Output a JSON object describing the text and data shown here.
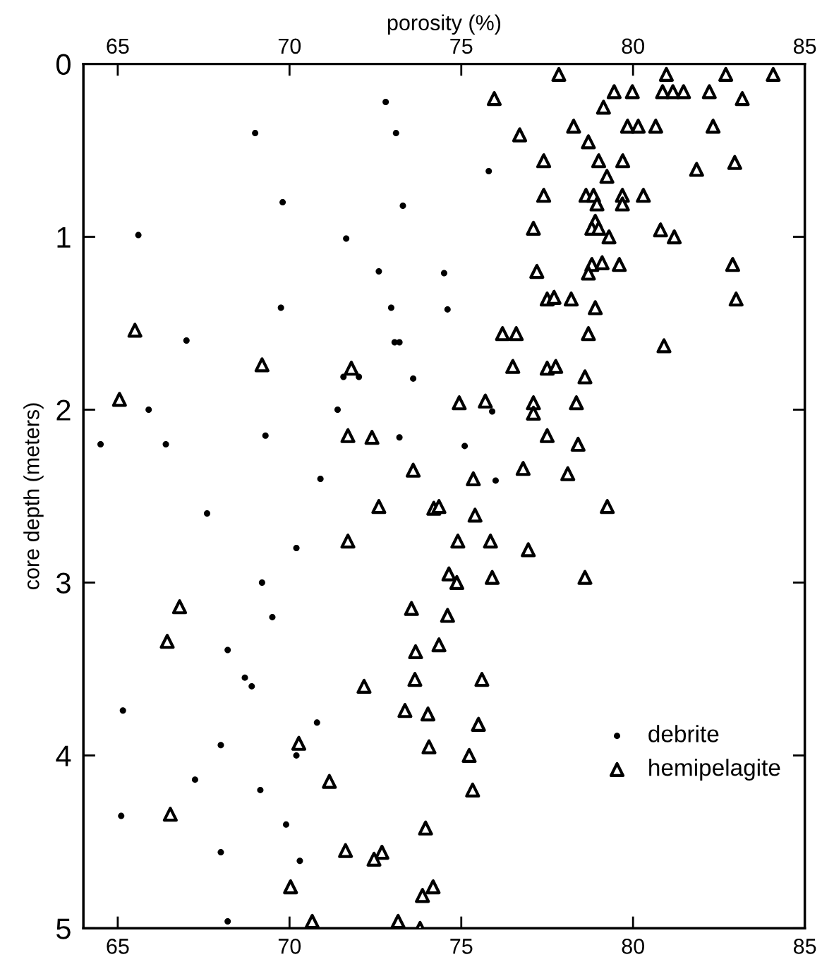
{
  "chart_data": {
    "type": "scatter",
    "x2label": "porosity (%)",
    "ylabel": "core depth (meters)",
    "xlim": [
      64,
      85
    ],
    "xticks": [
      65,
      70,
      75,
      80,
      85
    ],
    "x2lim": [
      64,
      85
    ],
    "x2ticks": [
      65,
      70,
      75,
      80,
      85
    ],
    "ylim": [
      5,
      0
    ],
    "yticks": [
      0,
      1,
      2,
      3,
      4,
      5
    ],
    "grid": false,
    "legend": "bottom right",
    "series": [
      {
        "name": "debrite",
        "color": "#000000",
        "marker": "circle",
        "x": [
          72.8,
          69.0,
          73.1,
          69.8,
          73.3,
          65.6,
          71.65,
          72.6,
          69.75,
          72.96,
          67.0,
          73.06,
          73.2,
          75.8,
          74.5,
          74.6,
          71.57,
          72.02,
          73.6,
          65.9,
          71.4,
          64.5,
          66.4,
          69.3,
          73.2,
          70.9,
          67.6,
          70.2,
          69.2,
          69.5,
          75.9,
          75.1,
          76.0,
          68.2,
          68.7,
          68.9,
          65.15,
          70.8,
          68.0,
          70.2,
          67.25,
          69.15,
          65.1,
          69.9,
          68.0,
          70.3,
          68.2
        ],
        "values": [
          0.22,
          0.4,
          0.4,
          0.8,
          0.82,
          0.99,
          1.01,
          1.2,
          1.41,
          1.41,
          1.6,
          1.61,
          1.61,
          0.62,
          1.21,
          1.42,
          1.81,
          1.81,
          1.82,
          2.0,
          2.0,
          2.2,
          2.2,
          2.15,
          2.16,
          2.4,
          2.6,
          2.8,
          3.0,
          3.2,
          2.01,
          2.21,
          2.41,
          3.39,
          3.55,
          3.6,
          3.74,
          3.81,
          3.94,
          4.0,
          4.14,
          4.2,
          4.35,
          4.4,
          4.56,
          4.61,
          4.96
        ]
      },
      {
        "name": "hemipelagite",
        "color": "#000000",
        "marker": "triangle",
        "x": [
          77.84,
          80.97,
          82.7,
          84.08,
          79.45,
          79.98,
          80.86,
          81.16,
          81.47,
          82.22,
          83.18,
          75.96,
          79.14,
          78.27,
          79.84,
          80.15,
          80.66,
          82.33,
          76.7,
          78.7,
          77.4,
          79.0,
          79.7,
          81.85,
          82.96,
          79.24,
          77.4,
          78.63,
          78.85,
          78.95,
          79.69,
          79.69,
          80.3,
          78.9,
          78.8,
          79.0,
          79.3,
          77.1,
          80.8,
          81.2,
          78.8,
          79.1,
          79.6,
          78.7,
          77.2,
          82.9,
          77.5,
          77.7,
          78.2,
          78.9,
          83.0,
          76.2,
          76.6,
          78.7,
          80.9,
          65.5,
          69.2,
          71.8,
          65.05,
          71.7,
          72.4,
          73.6,
          72.6,
          74.2,
          71.7,
          66.8,
          73.55,
          76.5,
          77.5,
          77.75,
          78.6,
          74.94,
          75.7,
          77.1,
          77.1,
          78.35,
          77.5,
          78.4,
          75.35,
          76.8,
          78.1,
          74.35,
          75.4,
          79.25,
          74.9,
          75.85,
          76.95,
          74.64,
          74.87,
          75.9,
          78.6,
          74.6,
          66.44,
          73.67,
          74.35,
          73.65,
          72.17,
          73.36,
          74.03,
          70.27,
          74.06,
          71.16,
          66.53,
          73.96,
          71.63,
          72.69,
          72.46,
          70.03,
          74.18,
          73.87,
          70.66,
          73.16,
          73.8,
          75.6,
          75.5,
          75.23,
          75.33
        ],
        "values": [
          0.06,
          0.06,
          0.06,
          0.06,
          0.16,
          0.16,
          0.16,
          0.16,
          0.16,
          0.16,
          0.2,
          0.2,
          0.25,
          0.36,
          0.36,
          0.36,
          0.36,
          0.36,
          0.41,
          0.45,
          0.56,
          0.56,
          0.56,
          0.61,
          0.57,
          0.65,
          0.76,
          0.76,
          0.76,
          0.81,
          0.76,
          0.81,
          0.76,
          0.91,
          0.95,
          0.95,
          1.0,
          0.95,
          0.96,
          1.0,
          1.16,
          1.15,
          1.16,
          1.21,
          1.2,
          1.16,
          1.36,
          1.35,
          1.36,
          1.41,
          1.36,
          1.56,
          1.56,
          1.56,
          1.63,
          1.54,
          1.74,
          1.76,
          1.94,
          2.15,
          2.16,
          2.35,
          2.56,
          2.57,
          2.76,
          3.14,
          3.15,
          1.75,
          1.76,
          1.75,
          1.81,
          1.96,
          1.95,
          1.96,
          2.02,
          1.96,
          2.15,
          2.2,
          2.4,
          2.34,
          2.37,
          2.56,
          2.61,
          2.56,
          2.76,
          2.76,
          2.81,
          2.95,
          3.0,
          2.97,
          2.97,
          3.19,
          3.34,
          3.4,
          3.36,
          3.56,
          3.6,
          3.74,
          3.76,
          3.93,
          3.95,
          4.15,
          4.34,
          4.42,
          4.55,
          4.56,
          4.6,
          4.76,
          4.76,
          4.81,
          4.96,
          4.96,
          5.0,
          3.56,
          3.82,
          4.0,
          4.2
        ]
      }
    ]
  }
}
